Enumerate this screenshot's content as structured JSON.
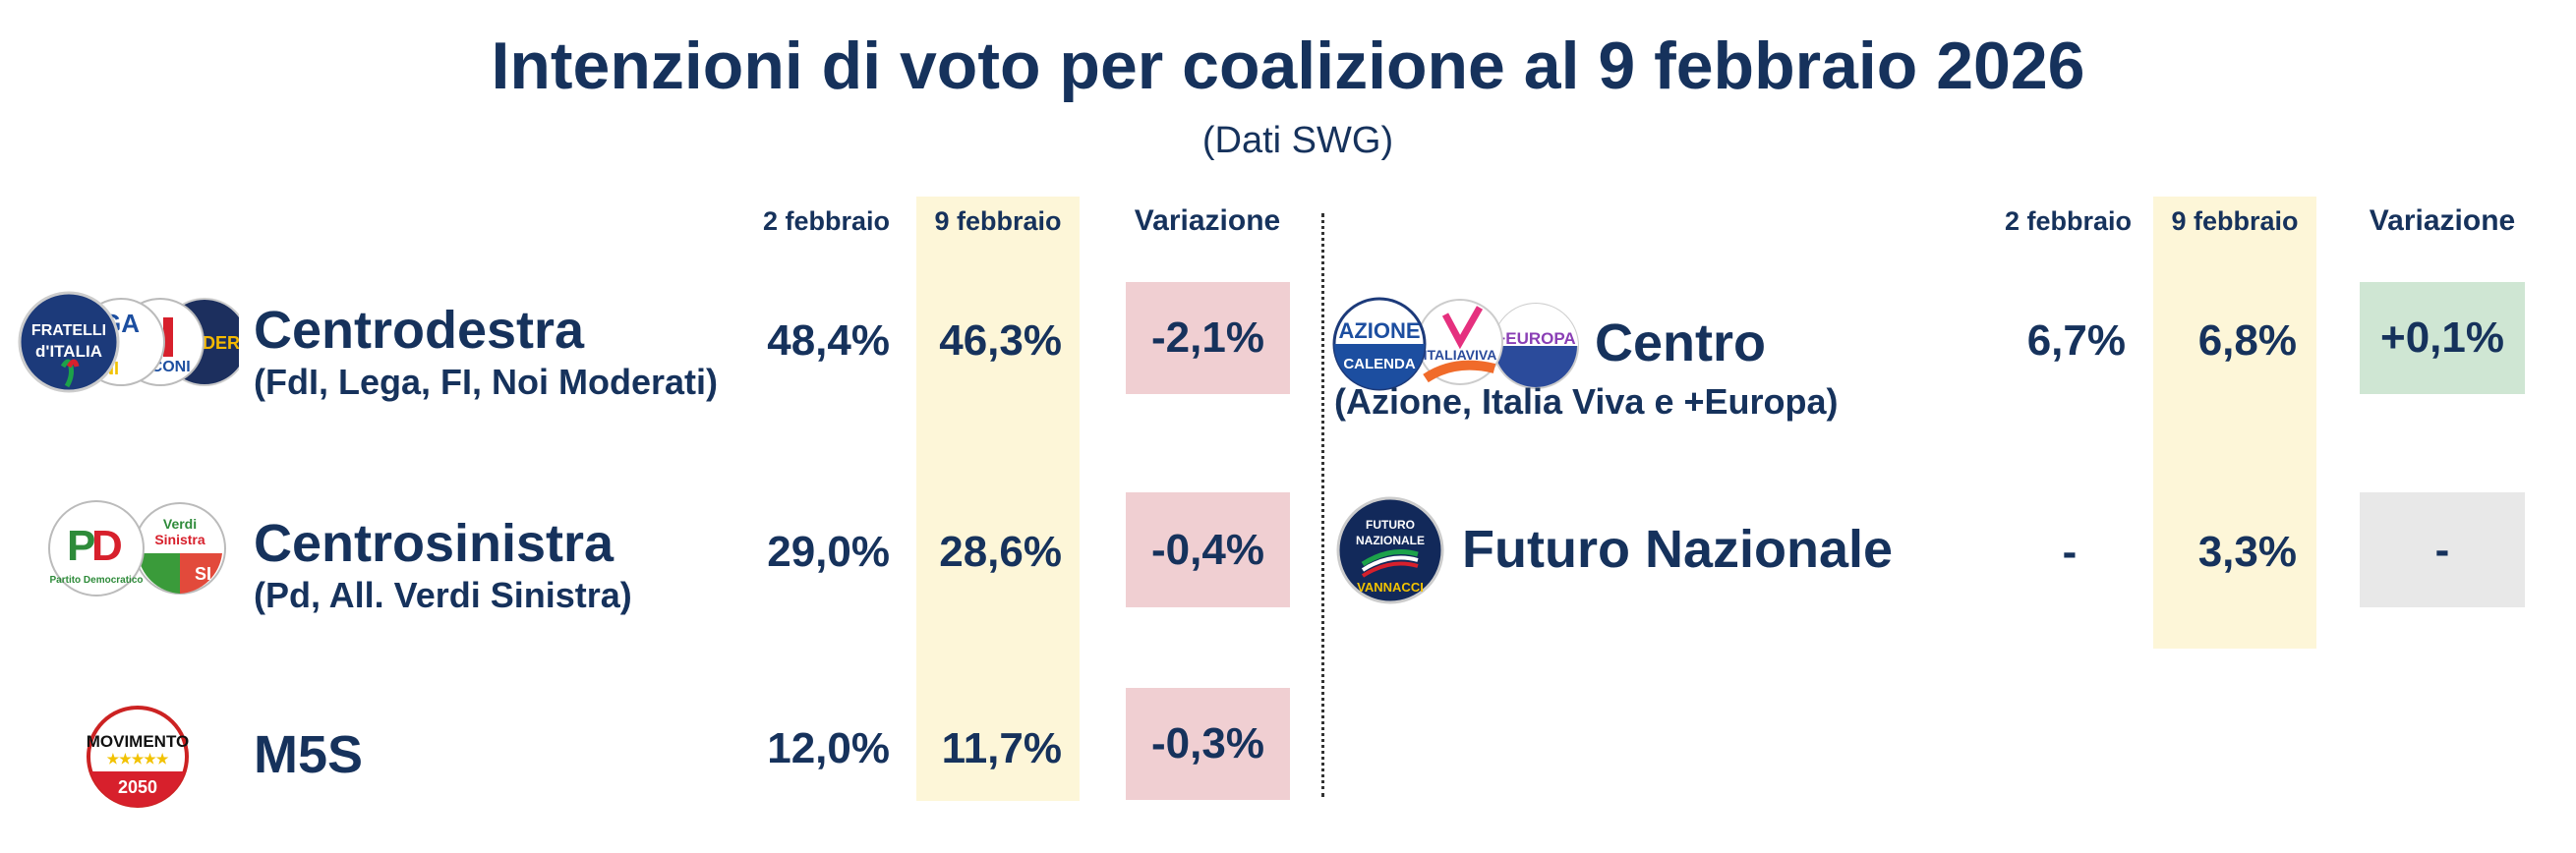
{
  "title": "Intenzioni di voto per coalizione al 9 febbraio 2026",
  "subtitle": "(Dati SWG)",
  "colors": {
    "text": "#16325c",
    "current_column": "#fdf6d8",
    "decrease": "#f0cfd2",
    "increase": "#cfe6d3",
    "neutral": "#e8e8e8"
  },
  "headers": {
    "prev": "2 febbraio",
    "curr": "9 febbraio",
    "change": "Variazione"
  },
  "left": [
    {
      "name": "Centrodestra",
      "parties": "(FdI, Lega, FI, Noi Moderati)",
      "prev": "48,4%",
      "curr": "46,3%",
      "change": "-2,1%",
      "trend": "decrease",
      "logos": [
        "Fratelli d'Italia",
        "Lega Salvini",
        "Forza Italia Berlusconi",
        "Noi Moderati"
      ]
    },
    {
      "name": "Centrosinistra",
      "parties": "(Pd, All. Verdi Sinistra)",
      "prev": "29,0%",
      "curr": "28,6%",
      "change": "-0,4%",
      "trend": "decrease",
      "logos": [
        "PD Partito Democratico",
        "Alleanza Verdi Sinistra"
      ]
    },
    {
      "name": "M5S",
      "parties": "",
      "prev": "12,0%",
      "curr": "11,7%",
      "change": "-0,3%",
      "trend": "decrease",
      "logos": [
        "MoVimento 2050"
      ]
    }
  ],
  "right": [
    {
      "name": "Centro",
      "parties": "(Azione, Italia Viva e +Europa)",
      "prev": "6,7%",
      "curr": "6,8%",
      "change": "+0,1%",
      "trend": "increase",
      "logos": [
        "Azione con Calenda",
        "Italia Viva",
        "+Europa"
      ]
    },
    {
      "name": "Futuro Nazionale",
      "parties": "",
      "prev": "-",
      "curr": "3,3%",
      "change": "-",
      "trend": "neutral",
      "logos": [
        "Futuro Nazionale Vannacci"
      ]
    }
  ]
}
